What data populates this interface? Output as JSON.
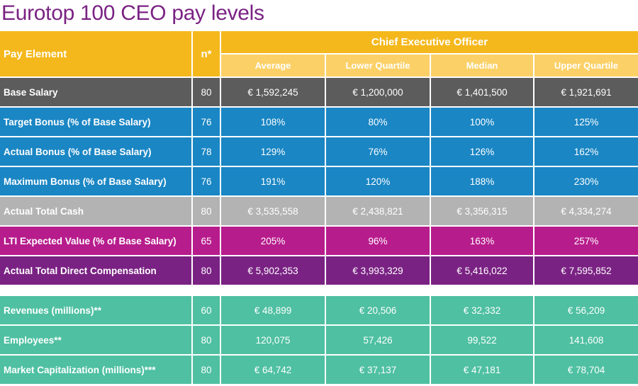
{
  "title": "Eurotop 100 CEO pay levels",
  "header": {
    "pay_element": "Pay Element",
    "n": "n*",
    "group": "Chief Executive Officer",
    "columns": [
      "Average",
      "Lower Quartile",
      "Median",
      "Upper Quartile"
    ]
  },
  "colors": {
    "header_dark": "#f5b81c",
    "header_light": "#fbd066",
    "gray_dark": "#5c5c5c",
    "blue": "#1a86c4",
    "gray_light": "#b3b3b3",
    "magenta": "#b71c8c",
    "purple": "#7a2283",
    "green": "#4fc0a2",
    "title": "#7a2283"
  },
  "rows": [
    {
      "label": "Base Salary",
      "n": "80",
      "values": [
        "€ 1,592,245",
        "€ 1,200,000",
        "€ 1,401,500",
        "€ 1,921,691"
      ],
      "color": "gray_dark"
    },
    {
      "label": "Target Bonus (% of Base Salary)",
      "n": "76",
      "values": [
        "108%",
        "80%",
        "100%",
        "125%"
      ],
      "color": "blue"
    },
    {
      "label": "Actual Bonus (% of Base Salary)",
      "n": "78",
      "values": [
        "129%",
        "76%",
        "126%",
        "162%"
      ],
      "color": "blue"
    },
    {
      "label": "Maximum Bonus (% of Base Salary)",
      "n": "76",
      "values": [
        "191%",
        "120%",
        "188%",
        "230%"
      ],
      "color": "blue"
    },
    {
      "label": "Actual Total Cash",
      "n": "80",
      "values": [
        "€ 3,535,558",
        "€ 2,438,821",
        "€ 3,356,315",
        "€ 4,334,274"
      ],
      "color": "gray_light"
    },
    {
      "label": "LTI Expected Value (% of Base Salary)",
      "n": "65",
      "values": [
        "205%",
        "96%",
        "163%",
        "257%"
      ],
      "color": "magenta"
    },
    {
      "label": "Actual Total Direct Compensation",
      "n": "80",
      "values": [
        "€ 5,902,353",
        "€ 3,993,329",
        "€ 5,416,022",
        "€ 7,595,852"
      ],
      "color": "purple"
    },
    {
      "label": "Revenues (millions)**",
      "n": "60",
      "values": [
        "€ 48,899",
        "€ 20,506",
        "€ 32,332",
        "€ 56,209"
      ],
      "color": "green"
    },
    {
      "label": "Employees**",
      "n": "80",
      "values": [
        "120,075",
        "57,426",
        "99,522",
        "141,608"
      ],
      "color": "green"
    },
    {
      "label": "Market Capitalization (millions)***",
      "n": "80",
      "values": [
        "€ 64,742",
        "€ 37,137",
        "€ 47,181",
        "€ 78,704"
      ],
      "color": "green"
    }
  ]
}
